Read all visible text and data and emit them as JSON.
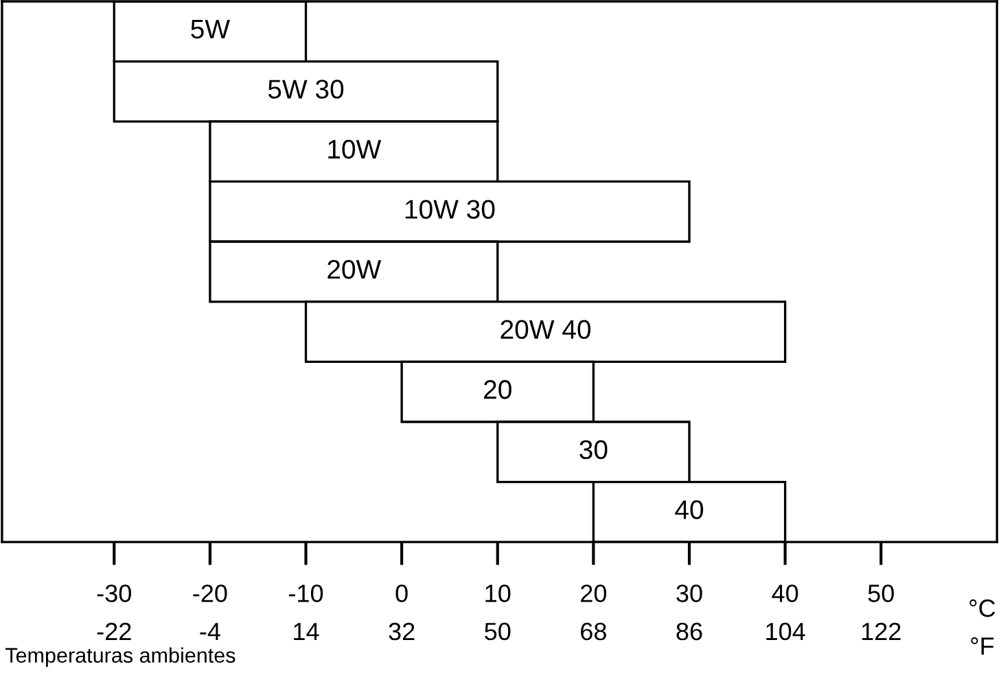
{
  "chart_data": {
    "type": "bar",
    "orientation": "horizontal",
    "categories": [
      "5W",
      "5W 30",
      "10W",
      "10W 30",
      "20W",
      "20W 40",
      "20",
      "30",
      "40"
    ],
    "base": [
      -30,
      -30,
      -20,
      -20,
      -20,
      -10,
      0,
      10,
      20
    ],
    "values": [
      20,
      40,
      30,
      50,
      30,
      50,
      20,
      20,
      20
    ],
    "color": "#ffffff",
    "xlim": [
      -41.7,
      62.1
    ],
    "xticks": [
      -30,
      -20,
      -10,
      0,
      10,
      20,
      30,
      40,
      50
    ],
    "xlabel": "°C",
    "x2lim": [
      -43.06,
      143.78
    ],
    "x2ticks": [
      -22,
      -4,
      14,
      32,
      50,
      68,
      86,
      104,
      122
    ],
    "x2label": "°F",
    "tick_labels": "x",
    "grid": false,
    "annotations": [
      "Temperaturas ambientes"
    ]
  }
}
